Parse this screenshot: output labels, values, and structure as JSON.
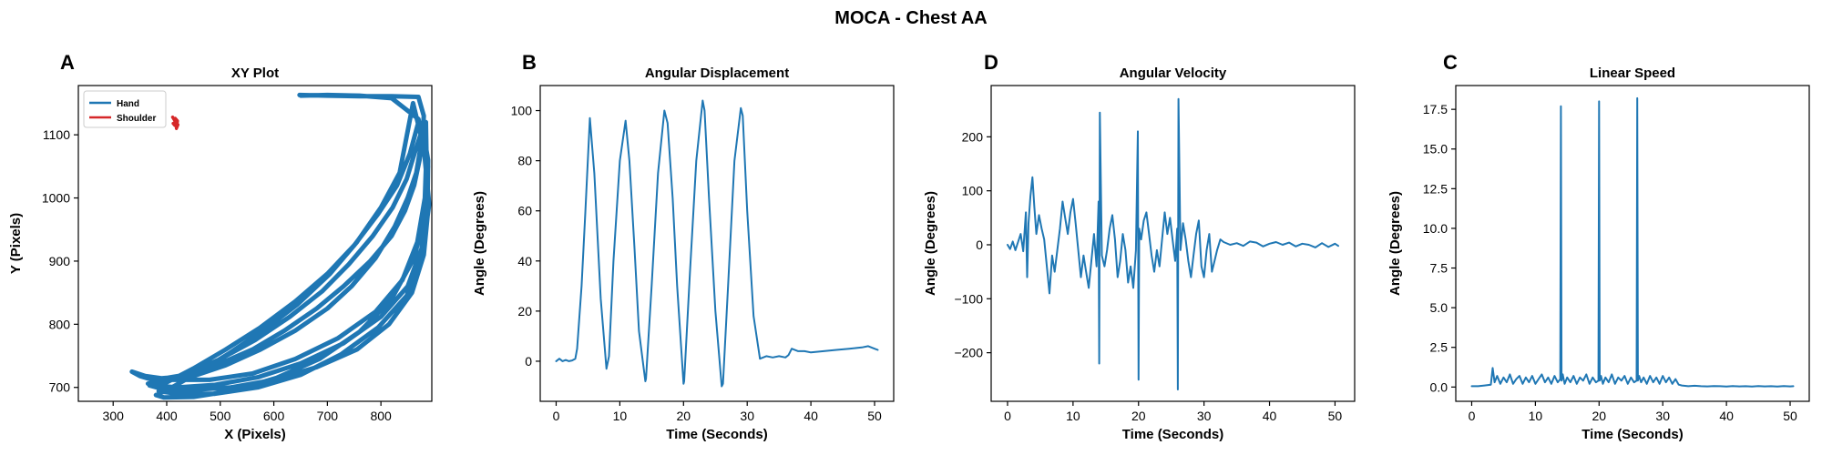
{
  "figure": {
    "suptitle": "MOCA - Chest AA",
    "colors": {
      "line": "#1f77b4",
      "shoulder": "#d62728",
      "axes": "#000000",
      "background": "#ffffff"
    }
  },
  "chart_data": [
    {
      "type": "line",
      "panel_letter": "A",
      "title": "XY Plot",
      "xlabel": "X (Pixels)",
      "ylabel": "Y (Pixels)",
      "xlim": [
        235,
        895
      ],
      "ylim": [
        678,
        1178
      ],
      "xticks": [
        300,
        400,
        500,
        600,
        700,
        800
      ],
      "yticks": [
        700,
        800,
        900,
        1000,
        1100
      ],
      "grid": false,
      "legend": {
        "position": "top-left",
        "entries": [
          "Hand",
          "Shoulder"
        ]
      },
      "series": [
        {
          "name": "Hand",
          "color": "#1f77b4",
          "x": [
            648,
            700,
            760,
            820,
            870,
            880,
            878,
            872,
            862,
            845,
            820,
            780,
            730,
            680,
            620,
            560,
            500,
            450,
            400,
            370,
            350,
            335,
            360,
            410,
            480,
            560,
            640,
            720,
            790,
            840,
            868,
            882,
            885,
            884,
            876,
            866,
            850,
            826,
            790,
            745,
            700,
            640,
            575,
            510,
            450,
            395,
            365,
            375,
            420,
            490,
            570,
            650,
            730,
            800,
            850,
            876,
            887,
            888,
            878,
            866,
            848,
            822,
            785,
            740,
            690,
            630,
            565,
            500,
            440,
            390,
            368,
            390,
            445,
            520,
            600,
            680,
            755,
            815,
            858,
            880,
            888,
            885,
            870,
            854,
            830,
            795,
            750,
            700,
            640,
            575,
            510,
            450,
            400,
            385,
            420,
            490,
            570,
            650,
            725,
            795,
            848,
            877,
            890,
            880,
            860,
            835,
            800,
            755,
            705,
            645,
            580,
            515,
            455,
            410,
            380,
            395,
            450,
            525,
            605,
            685,
            760,
            820,
            862,
            884,
            888,
            870,
            820,
            760,
            700,
            650
          ],
          "y": [
            1163,
            1162,
            1161,
            1161,
            1160,
            1130,
            1100,
            1060,
            1020,
            980,
            940,
            900,
            860,
            825,
            790,
            760,
            738,
            722,
            715,
            713,
            718,
            725,
            718,
            712,
            712,
            722,
            745,
            778,
            820,
            870,
            930,
            1000,
            1070,
            1120,
            1090,
            1040,
            1000,
            955,
            905,
            860,
            825,
            790,
            760,
            735,
            718,
            710,
            706,
            703,
            700,
            704,
            716,
            738,
            770,
            812,
            860,
            920,
            990,
            1060,
            1110,
            1080,
            1030,
            985,
            940,
            895,
            852,
            812,
            775,
            745,
            722,
            708,
            703,
            698,
            696,
            700,
            712,
            732,
            760,
            800,
            850,
            910,
            980,
            1050,
            1120,
            1070,
            1020,
            975,
            925,
            880,
            836,
            795,
            760,
            730,
            708,
            694,
            690,
            690,
            700,
            720,
            752,
            795,
            845,
            910,
            990,
            1080,
            1150,
            1040,
            985,
            930,
            880,
            832,
            790,
            753,
            722,
            700,
            688,
            684,
            685,
            695,
            715,
            745,
            788,
            840,
            905,
            980,
            1050,
            1125,
            1158,
            1162,
            1163,
            1162
          ]
        },
        {
          "name": "Shoulder",
          "color": "#d62728",
          "x": [
            411,
            414,
            417,
            412,
            415,
            419,
            416,
            421,
            418,
            420,
            416
          ],
          "y": [
            1128,
            1124,
            1120,
            1118,
            1115,
            1113,
            1119,
            1116,
            1110,
            1122,
            1126
          ]
        }
      ]
    },
    {
      "type": "line",
      "panel_letter": "B",
      "title": "Angular Displacement",
      "xlabel": "Time (Seconds)",
      "ylabel": "Angle (Degrees)",
      "xlim": [
        -2.5,
        53
      ],
      "ylim": [
        -16,
        110
      ],
      "xticks": [
        0,
        10,
        20,
        30,
        40,
        50
      ],
      "yticks": [
        0,
        20,
        40,
        60,
        80,
        100
      ],
      "grid": false,
      "series": [
        {
          "color": "#1f77b4",
          "x": [
            0,
            0.5,
            1,
            1.5,
            2,
            2.5,
            3,
            3.3,
            4,
            4.6,
            5.3,
            6,
            7,
            7.9,
            8.3,
            9,
            10,
            10.9,
            11.5,
            12.3,
            13,
            14,
            14.1,
            15,
            16,
            17,
            17.5,
            18.3,
            19,
            20,
            20.1,
            21,
            22,
            23,
            23.3,
            24,
            25,
            26,
            26.2,
            27,
            28,
            29,
            29.3,
            30,
            31,
            32,
            32.5,
            33,
            34,
            35,
            36,
            36.5,
            37,
            38,
            39,
            40,
            42,
            44,
            46,
            48,
            49,
            50,
            50.5
          ],
          "y": [
            0,
            1,
            0,
            0.5,
            0,
            0.3,
            1,
            5,
            30,
            60,
            97,
            75,
            25,
            -3,
            2,
            40,
            80,
            96,
            80,
            45,
            12,
            -8,
            -7,
            30,
            75,
            100,
            95,
            65,
            30,
            -9,
            -8,
            35,
            80,
            104,
            100,
            65,
            20,
            -10,
            -9,
            30,
            80,
            101,
            98,
            60,
            18,
            1,
            1.5,
            2,
            1.5,
            2,
            1.5,
            2.5,
            5,
            4,
            4,
            3.5,
            4,
            4.5,
            5,
            5.5,
            6,
            5,
            4.5
          ]
        }
      ]
    },
    {
      "type": "line",
      "panel_letter": "D",
      "title": "Angular Velocity",
      "xlabel": "Time (Seconds)",
      "ylabel": "Angle (Degrees)",
      "xlim": [
        -2.5,
        53
      ],
      "ylim": [
        -290,
        295
      ],
      "xticks": [
        0,
        10,
        20,
        30,
        40,
        50
      ],
      "yticks": [
        -200,
        -100,
        0,
        100,
        200
      ],
      "grid": false,
      "series": [
        {
          "color": "#1f77b4",
          "x": [
            0,
            0.4,
            0.8,
            1.2,
            1.6,
            2,
            2.4,
            2.8,
            3,
            3.2,
            3.5,
            3.8,
            4.1,
            4.4,
            4.8,
            5.2,
            5.6,
            6,
            6.4,
            6.8,
            7.2,
            7.6,
            8,
            8.4,
            8.8,
            9.2,
            9.6,
            10,
            10.4,
            10.8,
            11.2,
            11.6,
            12,
            12.4,
            12.8,
            13.2,
            13.6,
            13.9,
            14,
            14.1,
            14.4,
            14.8,
            15.2,
            15.6,
            16,
            16.4,
            16.8,
            17.2,
            17.6,
            18,
            18.4,
            18.8,
            19.2,
            19.6,
            19.9,
            20,
            20.1,
            20.4,
            20.8,
            21.2,
            21.6,
            22,
            22.4,
            22.8,
            23.2,
            23.6,
            24,
            24.4,
            24.8,
            25.2,
            25.6,
            25.9,
            26,
            26.1,
            26.4,
            26.8,
            27.2,
            27.6,
            28,
            28.4,
            28.8,
            29.2,
            29.6,
            30,
            30.4,
            30.8,
            31.2,
            31.6,
            32,
            32.5,
            33,
            34,
            35,
            36,
            37,
            38,
            39,
            40,
            41,
            42,
            43,
            44,
            45,
            46,
            47,
            48,
            49,
            50,
            50.5
          ],
          "y": [
            0,
            -8,
            6,
            -10,
            5,
            20,
            -12,
            60,
            -60,
            40,
            90,
            125,
            70,
            20,
            55,
            30,
            10,
            -40,
            -90,
            -20,
            -50,
            -10,
            30,
            80,
            50,
            20,
            60,
            85,
            40,
            -10,
            -60,
            -20,
            -50,
            -80,
            -30,
            20,
            -40,
            80,
            -220,
            245,
            -20,
            -40,
            -10,
            30,
            55,
            10,
            -60,
            -30,
            20,
            -10,
            -70,
            -40,
            -80,
            -10,
            210,
            -250,
            30,
            10,
            45,
            60,
            20,
            -20,
            -50,
            -10,
            -40,
            10,
            60,
            20,
            50,
            10,
            -30,
            30,
            -268,
            270,
            -10,
            40,
            10,
            -30,
            -60,
            -20,
            20,
            45,
            -40,
            -60,
            -10,
            20,
            -50,
            -30,
            -10,
            10,
            5,
            0,
            3,
            -2,
            6,
            4,
            -3,
            2,
            5,
            0,
            4,
            -3,
            2,
            0,
            -5,
            3,
            -4,
            2,
            -2
          ]
        }
      ]
    },
    {
      "type": "line",
      "panel_letter": "C",
      "title": "Linear Speed",
      "xlabel": "Time (Seconds)",
      "ylabel": "Angle (Degrees)",
      "xlim": [
        -2.5,
        53
      ],
      "ylim": [
        -0.9,
        19.0
      ],
      "xticks": [
        0,
        10,
        20,
        30,
        40,
        50
      ],
      "yticks": [
        0.0,
        2.5,
        5.0,
        7.5,
        10.0,
        12.5,
        15.0,
        17.5
      ],
      "ytick_labels": [
        "0.0",
        "2.5",
        "5.0",
        "7.5",
        "10.0",
        "12.5",
        "15.0",
        "17.5"
      ],
      "grid": false,
      "series": [
        {
          "color": "#1f77b4",
          "x": [
            0,
            1,
            2,
            3,
            3.3,
            3.6,
            4,
            4.5,
            5,
            5.5,
            6,
            6.5,
            7,
            7.5,
            8,
            8.5,
            9,
            9.5,
            10,
            10.5,
            11,
            11.5,
            12,
            12.5,
            13,
            13.5,
            13.9,
            14,
            14.1,
            14.3,
            14.6,
            15,
            15.5,
            16,
            16.5,
            17,
            17.5,
            18,
            18.5,
            19,
            19.5,
            19.9,
            20,
            20.1,
            20.3,
            20.6,
            21,
            21.5,
            22,
            22.5,
            23,
            23.5,
            24,
            24.5,
            25,
            25.5,
            25.9,
            26,
            26.1,
            26.3,
            26.6,
            27,
            27.5,
            28,
            28.5,
            29,
            29.5,
            30,
            30.5,
            31,
            31.5,
            32,
            32.5,
            33,
            34,
            35,
            36,
            37,
            38,
            39,
            40,
            41,
            42,
            43,
            44,
            45,
            46,
            47,
            48,
            49,
            50,
            50.5
          ],
          "y": [
            0.05,
            0.05,
            0.1,
            0.15,
            1.2,
            0.3,
            0.7,
            0.2,
            0.6,
            0.3,
            0.8,
            0.2,
            0.5,
            0.7,
            0.2,
            0.6,
            0.3,
            0.7,
            0.2,
            0.5,
            0.8,
            0.3,
            0.6,
            0.2,
            0.7,
            0.3,
            0.5,
            17.7,
            0.4,
            0.8,
            0.2,
            0.6,
            0.3,
            0.7,
            0.2,
            0.6,
            0.4,
            0.8,
            0.2,
            0.6,
            0.3,
            0.4,
            18.0,
            0.4,
            0.7,
            0.2,
            0.6,
            0.3,
            0.8,
            0.2,
            0.6,
            0.4,
            0.7,
            0.2,
            0.6,
            0.3,
            0.4,
            18.2,
            0.4,
            0.7,
            0.3,
            0.6,
            0.2,
            0.7,
            0.3,
            0.6,
            0.2,
            0.7,
            0.3,
            0.6,
            0.2,
            0.5,
            0.15,
            0.1,
            0.05,
            0.08,
            0.05,
            0.04,
            0.06,
            0.05,
            0.03,
            0.06,
            0.04,
            0.05,
            0.03,
            0.06,
            0.04,
            0.05,
            0.03,
            0.06,
            0.04,
            0.05
          ]
        }
      ]
    }
  ]
}
